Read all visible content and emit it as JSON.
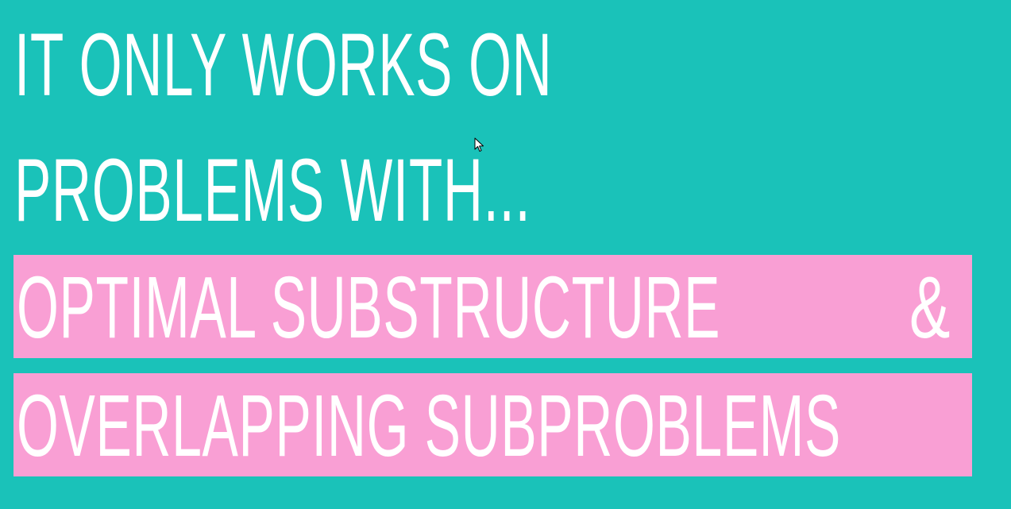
{
  "slide": {
    "heading_line_1": "IT ONLY WORKS ON",
    "heading_line_2": "PROBLEMS WITH...",
    "highlight_1": "OPTIMAL SUBSTRUCTURE",
    "highlight_1_suffix": "&",
    "highlight_2": "OVERLAPPING SUBPROBLEMS"
  },
  "colors": {
    "background": "#1ac2b9",
    "highlight_band": "#f99fd4",
    "text": "#ffffff"
  },
  "icons": {
    "cursor": "mouse-pointer-icon"
  }
}
